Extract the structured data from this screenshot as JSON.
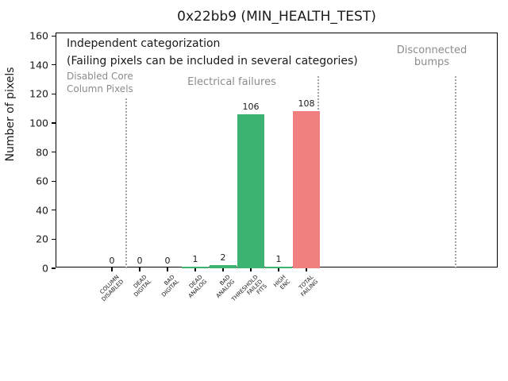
{
  "figure": {
    "title": "0x22bb9 (MIN_HEALTH_TEST)"
  },
  "chart_data": {
    "type": "bar",
    "title": "0x22bb9 (MIN_HEALTH_TEST)",
    "xlabel": "",
    "ylabel": "Number of pixels",
    "ylim": [
      0,
      162
    ],
    "yticks": [
      0,
      20,
      40,
      60,
      80,
      100,
      120,
      140,
      160
    ],
    "grid": false,
    "legend": null,
    "categories": [
      "COLUMN\nDISABLED",
      "DEAD\nDIGITAL",
      "BAD\nDIGITAL",
      "DEAD\nANALOG",
      "BAD\nANALOG",
      "THRESHOLD\nFAILED\nFITS",
      "HIGH\nENC",
      "TOTAL\nFAILING"
    ],
    "values": [
      0,
      0,
      0,
      1,
      2,
      106,
      1,
      108
    ],
    "bar_value_labels": [
      "0",
      "0",
      "0",
      "1",
      "2",
      "106",
      "1",
      "108"
    ],
    "bar_colors": [
      "#3cb371",
      "#3cb371",
      "#3cb371",
      "#3cb371",
      "#3cb371",
      "#3cb371",
      "#3cb371",
      "#f08080"
    ],
    "annotations": [
      {
        "id": "independent",
        "text": "Independent categorization",
        "color": "#1a1a1a"
      },
      {
        "id": "failing-note",
        "text": "(Failing pixels can be included in several categories)",
        "color": "#1a1a1a"
      },
      {
        "id": "disabled-core",
        "text": "Disabled Core\nColumn Pixels",
        "color": "#8c8c8c"
      },
      {
        "id": "electrical",
        "text": "Electrical failures",
        "color": "#8c8c8c"
      },
      {
        "id": "disconnected",
        "text": "Disconnected\nbumps",
        "color": "#8c8c8c"
      }
    ],
    "group_separators": {
      "style": "dotted",
      "color": "#a3a3a3",
      "count": 3
    }
  },
  "colors": {
    "bar_green": "#3cb371",
    "bar_red": "#f08080",
    "annotation_gray": "#8c8c8c",
    "separator_gray": "#a3a3a3",
    "axis_black": "#000000",
    "background": "#ffffff"
  }
}
